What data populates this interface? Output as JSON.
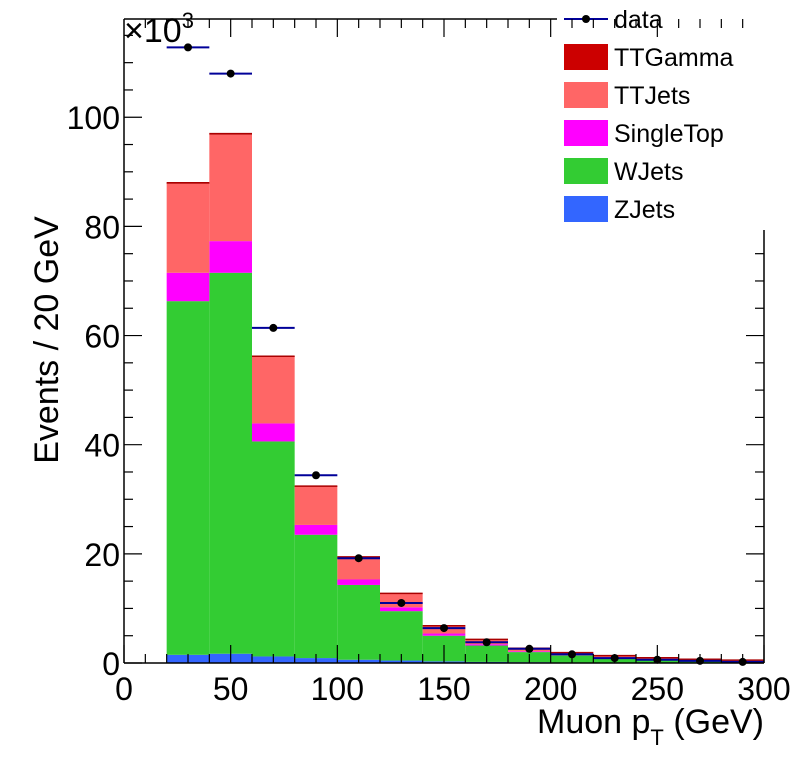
{
  "chart_data": {
    "type": "bar",
    "stacked": true,
    "xlabel_main": "Muon p",
    "xlabel_sub": "T",
    "xlabel_unit": " (GeV)",
    "ylabel": "Events / 20 GeV",
    "y_multiplier": "×10",
    "y_multiplier_exp": "3",
    "xlim": [
      0,
      300
    ],
    "ylim": [
      0,
      118
    ],
    "x_ticks": [
      "0",
      "50",
      "100",
      "150",
      "200",
      "250",
      "300"
    ],
    "y_ticks": [
      "0",
      "20",
      "40",
      "60",
      "80",
      "100"
    ],
    "bin_edges": [
      0,
      20,
      40,
      60,
      80,
      100,
      120,
      140,
      160,
      180,
      200,
      220,
      240,
      260,
      280,
      300
    ],
    "series": [
      {
        "name": "ZJets",
        "color": "#3366ff",
        "values": [
          0,
          1.5,
          1.7,
          1.2,
          0.9,
          0.6,
          0.45,
          0.3,
          0.2,
          0.15,
          0.1,
          0.08,
          0.06,
          0.05,
          0.04
        ]
      },
      {
        "name": "WJets",
        "color": "#33cc33",
        "values": [
          0,
          64.8,
          69.8,
          39.4,
          22.6,
          13.7,
          9.05,
          4.7,
          3.0,
          1.85,
          1.3,
          0.92,
          0.64,
          0.45,
          0.36
        ]
      },
      {
        "name": "SingleTop",
        "color": "#ff00ff",
        "values": [
          0,
          5.2,
          5.8,
          3.3,
          1.8,
          1.0,
          0.7,
          0.4,
          0.25,
          0.15,
          0.1,
          0.07,
          0.05,
          0.03,
          0.02
        ]
      },
      {
        "name": "TTJets",
        "color": "#ff6666",
        "values": [
          0,
          16.3,
          19.5,
          12.2,
          7.0,
          4.1,
          2.5,
          1.4,
          0.85,
          0.55,
          0.4,
          0.28,
          0.2,
          0.15,
          0.1
        ]
      },
      {
        "name": "TTGamma",
        "color": "#cc0000",
        "values": [
          0,
          0.2,
          0.2,
          0.1,
          0.1,
          0.05,
          0.05,
          0.03,
          0.02,
          0.01,
          0.01,
          0.01,
          0.01,
          0.01,
          0.01
        ]
      }
    ],
    "data_series": {
      "name": "data",
      "color": "#000099",
      "x": [
        30,
        50,
        70,
        90,
        110,
        130,
        150,
        170,
        190,
        210,
        230,
        250,
        270,
        290
      ],
      "y": [
        112.8,
        108.0,
        61.4,
        34.4,
        19.2,
        11.0,
        6.4,
        3.8,
        2.6,
        1.6,
        0.9,
        0.6,
        0.4,
        0.2
      ]
    },
    "legend": {
      "placement": "top-right",
      "entries": [
        {
          "label": "data",
          "kind": "marker",
          "color": "#000099"
        },
        {
          "label": "TTGamma",
          "kind": "fill",
          "color": "#cc0000"
        },
        {
          "label": "TTJets",
          "kind": "fill",
          "color": "#ff6666"
        },
        {
          "label": "SingleTop",
          "kind": "fill",
          "color": "#ff00ff"
        },
        {
          "label": "WJets",
          "kind": "fill",
          "color": "#33cc33"
        },
        {
          "label": "ZJets",
          "kind": "fill",
          "color": "#3366ff"
        }
      ]
    }
  }
}
